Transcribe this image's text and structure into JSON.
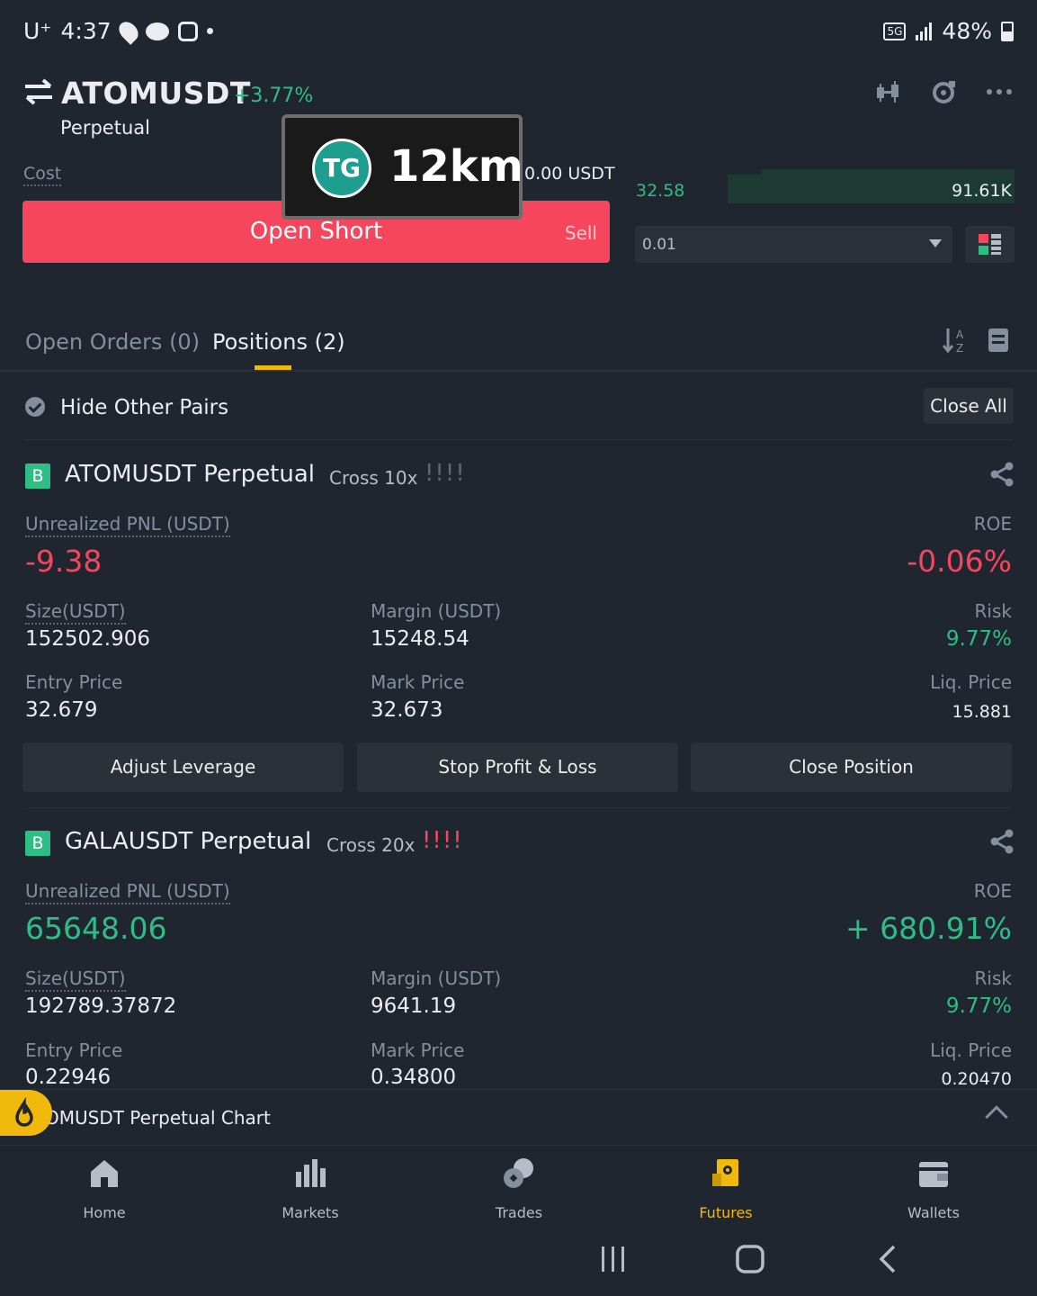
{
  "status_bar": {
    "carrier": "U⁺",
    "time": "4:37",
    "battery": "48%"
  },
  "header": {
    "pair": "ATOMUSDT",
    "change": "+3.77%",
    "contract_type": "Perpetual"
  },
  "order_form": {
    "cost_label": "Cost",
    "cost_value": "0.00 USDT",
    "open_short_label": "Open Short",
    "sell_label": "Sell"
  },
  "order_book": {
    "price": "32.58",
    "quantity": "91.61K",
    "depth_value": "0.01"
  },
  "overlay": {
    "badge": "TG",
    "distance": "12km"
  },
  "tabs": {
    "open_orders": "Open Orders (0)",
    "positions": "Positions (2)"
  },
  "filter": {
    "hide_other_pairs": "Hide Other Pairs",
    "close_all": "Close All"
  },
  "labels": {
    "unrealized_pnl": "Unrealized PNL (USDT)",
    "roe": "ROE",
    "size": "Size(USDT)",
    "margin": "Margin (USDT)",
    "risk": "Risk",
    "entry_price": "Entry Price",
    "mark_price": "Mark Price",
    "liq_price": "Liq. Price"
  },
  "positions": [
    {
      "side_badge": "B",
      "title": "ATOMUSDT Perpetual",
      "mode": "Cross 10x",
      "risk_marks": "!!!!",
      "pnl": "-9.38",
      "roe": "-0.06%",
      "size": "152502.906",
      "margin": "15248.54",
      "risk": "9.77%",
      "entry_price": "32.679",
      "mark_price": "32.673",
      "liq_price": "15.881"
    },
    {
      "side_badge": "B",
      "title": "GALAUSDT Perpetual",
      "mode": "Cross 20x",
      "risk_marks": "!!!!",
      "pnl": "65648.06",
      "roe": "+ 680.91%",
      "size": "192789.37872",
      "margin": "9641.19",
      "risk": "9.77%",
      "entry_price": "0.22946",
      "mark_price": "0.34800",
      "liq_price": "0.20470"
    }
  ],
  "position_actions": {
    "adjust_leverage": "Adjust Leverage",
    "stop_profit_loss": "Stop Profit & Loss",
    "close_position": "Close Position"
  },
  "chart_bar": {
    "label": "OMUSDT Perpetual  Chart"
  },
  "bottom_nav": [
    {
      "label": "Home",
      "icon": "home-icon"
    },
    {
      "label": "Markets",
      "icon": "markets-icon"
    },
    {
      "label": "Trades",
      "icon": "trades-icon"
    },
    {
      "label": "Futures",
      "icon": "futures-icon"
    },
    {
      "label": "Wallets",
      "icon": "wallet-icon"
    }
  ],
  "colors": {
    "background": "#1f2630",
    "green": "#2ebd85",
    "red": "#f6465d",
    "accent": "#f0b90b"
  }
}
